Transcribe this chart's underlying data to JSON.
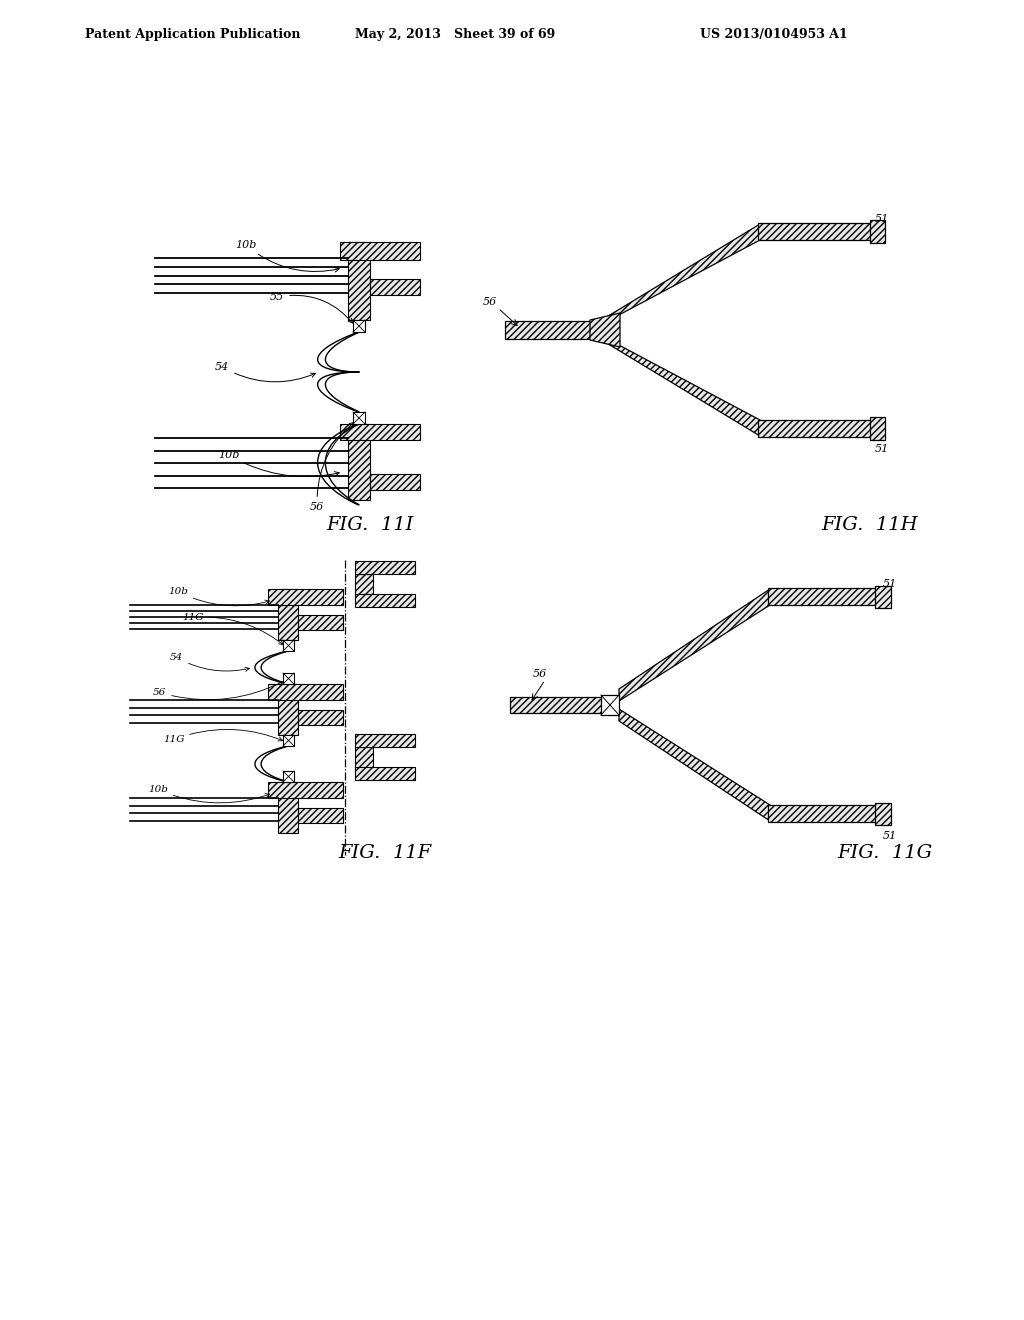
{
  "title_left": "Patent Application Publication",
  "title_center": "May 2, 2013   Sheet 39 of 69",
  "title_right": "US 2013/0104953 A1",
  "bg_color": "#ffffff",
  "hatch_lw": 0.4,
  "lc": "#000000"
}
